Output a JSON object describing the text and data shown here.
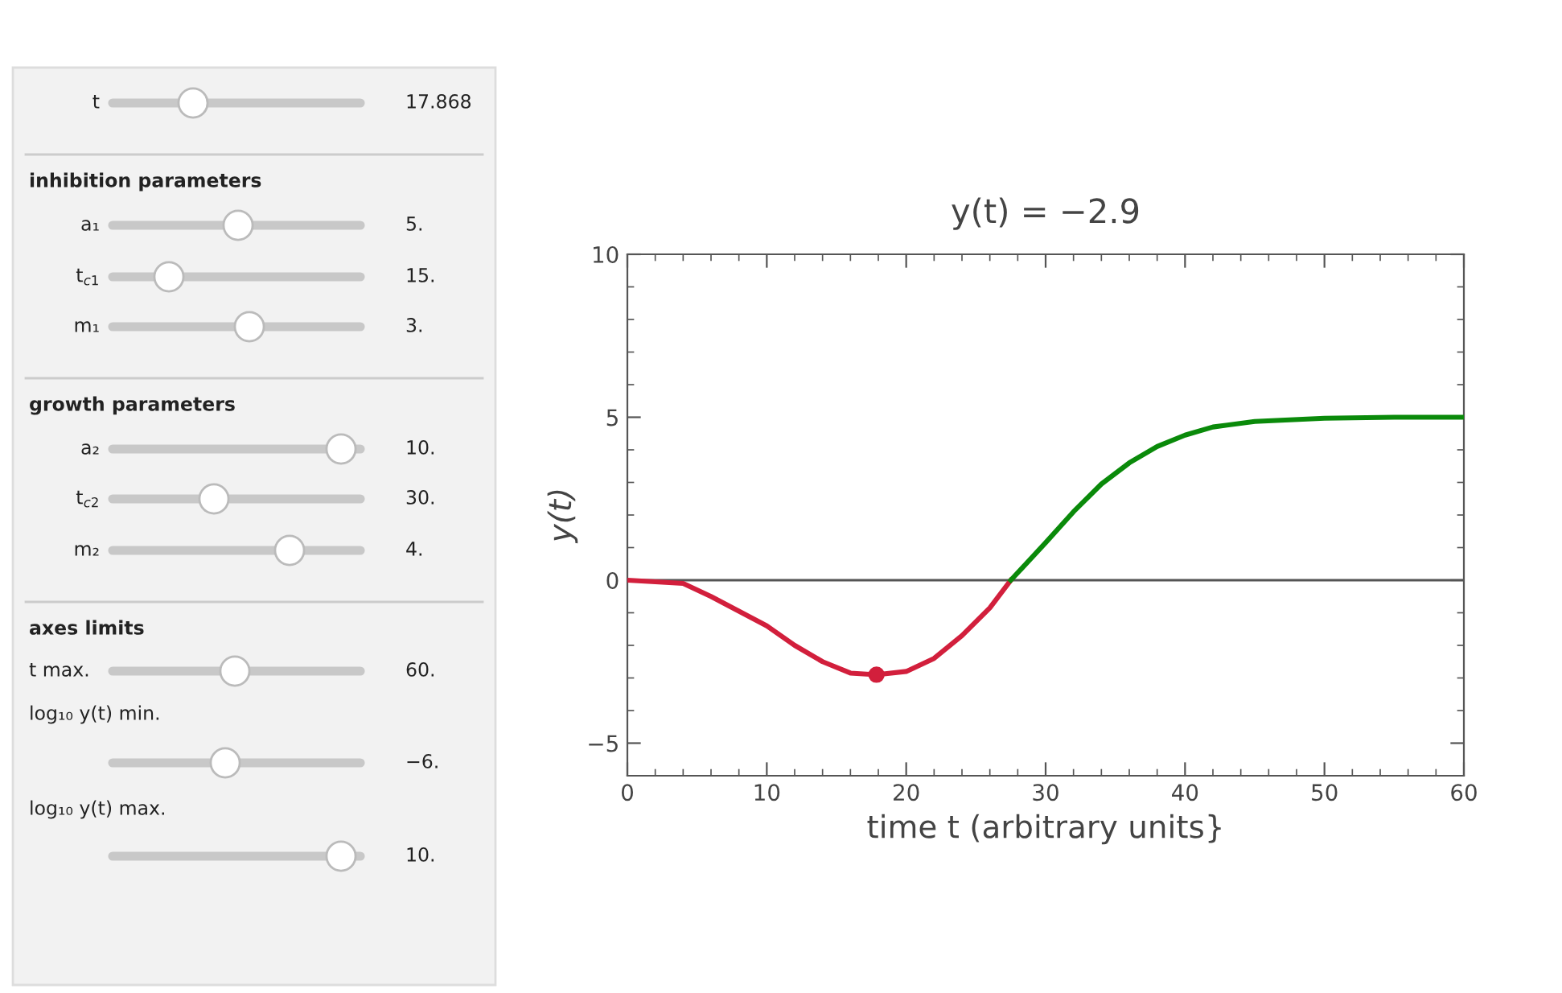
{
  "chart_data": {
    "type": "line",
    "title": "y(t) = −2.9",
    "xlabel": "time t (arbitrary units}",
    "ylabel": "y(t)",
    "xlim": [
      0,
      60
    ],
    "xticks": [
      0,
      10,
      20,
      30,
      40,
      50,
      60
    ],
    "ylim": [
      -6,
      10
    ],
    "yticks": [
      {
        "value": -5,
        "label": "−5"
      },
      0,
      5,
      10
    ],
    "grid": false,
    "legend": false,
    "series": [
      {
        "color": "#d21f3c",
        "x": [
          0,
          4,
          6,
          8,
          10,
          12,
          14,
          16,
          17.868,
          20,
          22,
          24,
          26,
          27.5
        ],
        "values": [
          0,
          -0.1,
          -0.5,
          -0.95,
          -1.4,
          -2.0,
          -2.5,
          -2.85,
          -2.9,
          -2.8,
          -2.4,
          -1.7,
          -0.85,
          0
        ]
      },
      {
        "color": "#0a8a0a",
        "x": [
          27.5,
          30,
          32,
          34,
          36,
          38,
          40,
          42,
          45,
          50,
          55,
          60
        ],
        "values": [
          0,
          1.15,
          2.1,
          2.95,
          3.6,
          4.1,
          4.45,
          4.7,
          4.87,
          4.97,
          5.0,
          5.0
        ]
      },
      {
        "type": "scatter",
        "color": "#d21f3c",
        "marker": "circle",
        "x": [
          17.868
        ],
        "values": [
          -2.9
        ]
      }
    ],
    "ref_lines": [
      {
        "axis": "y",
        "value": 0,
        "color": "#555555"
      }
    ],
    "annotations": [
      "t",
      "17.868",
      "inhibition parameters",
      "a₁",
      "5.",
      "t$_{c1}$",
      "15.",
      "m₁",
      "3.",
      "growth parameters",
      "a₂",
      "10.",
      "t$_{c2}$",
      "30.",
      "m₂",
      "4.",
      "axes limits",
      "t max.",
      "60.",
      "log₁₀ y(t) min.",
      "−6.",
      "log₁₀ y(t) max.",
      "10."
    ]
  }
}
